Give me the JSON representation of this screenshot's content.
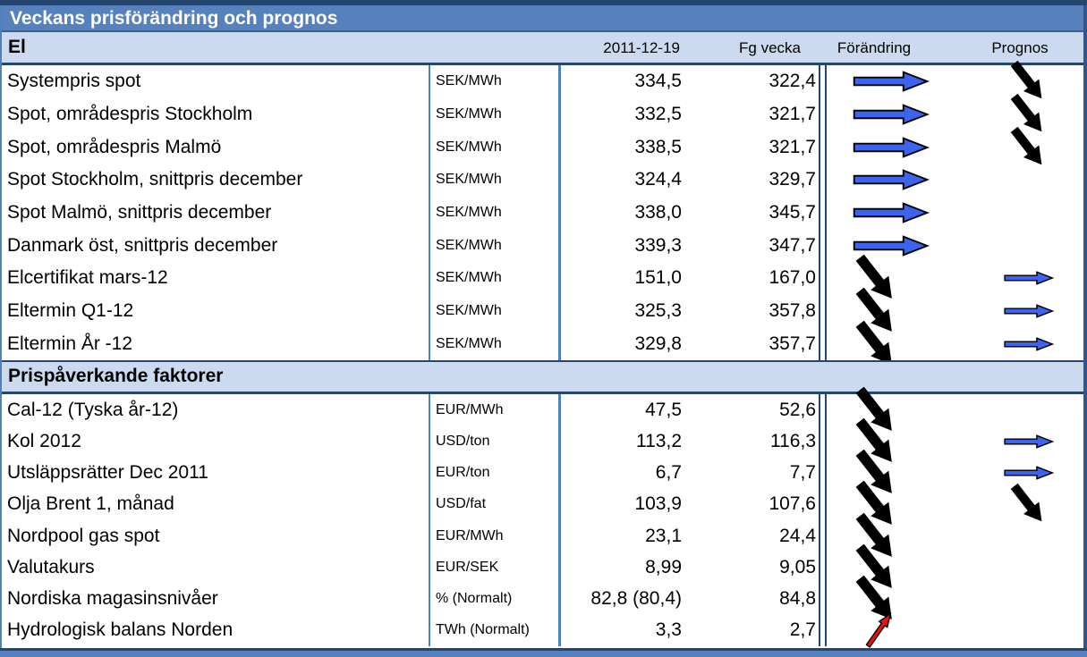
{
  "title": "Veckans prisförändring och prognos",
  "columns": {
    "date": "2011-12-19",
    "prev": "Fg vecka",
    "change": "Förändring",
    "forecast": "Prognos"
  },
  "colors": {
    "title_bar": "#5681BC",
    "section_band": "#CBDAEF",
    "border_dark": "#24466F",
    "border_blue": "#4F81BD",
    "arrow_blue": "#3D64EF",
    "arrow_black": "#000000",
    "arrow_red": "#E81212"
  },
  "legend": {
    "flat": "right-arrow",
    "down": "down-right-arrow",
    "up": "up-right-arrow"
  },
  "sections": [
    {
      "header": "El",
      "rows": [
        {
          "name": "Systempris spot",
          "unit": "SEK/MWh",
          "value": "334,5",
          "prev": "322,4",
          "change": "flat",
          "forecast": "down"
        },
        {
          "name": "Spot, områdespris Stockholm",
          "unit": "SEK/MWh",
          "value": "332,5",
          "prev": "321,7",
          "change": "flat",
          "forecast": "down"
        },
        {
          "name": "Spot, områdespris Malmö",
          "unit": "SEK/MWh",
          "value": "338,5",
          "prev": "321,7",
          "change": "flat",
          "forecast": "down"
        },
        {
          "name": "Spot Stockholm, snittpris december",
          "unit": "SEK/MWh",
          "value": "324,4",
          "prev": "329,7",
          "change": "flat",
          "forecast": "none"
        },
        {
          "name": "Spot Malmö, snittpris december",
          "unit": "SEK/MWh",
          "value": "338,0",
          "prev": "345,7",
          "change": "flat",
          "forecast": "none"
        },
        {
          "name": "Danmark öst, snittpris december",
          "unit": "SEK/MWh",
          "value": "339,3",
          "prev": "347,7",
          "change": "flat",
          "forecast": "none"
        },
        {
          "name": "Elcertifikat mars-12",
          "unit": "SEK/MWh",
          "value": "151,0",
          "prev": "167,0",
          "change": "down",
          "forecast": "flat"
        },
        {
          "name": "Eltermin Q1-12",
          "unit": "SEK/MWh",
          "value": "325,3",
          "prev": "357,8",
          "change": "down",
          "forecast": "flat"
        },
        {
          "name": "Eltermin År -12",
          "unit": "SEK/MWh",
          "value": "329,8",
          "prev": "357,7",
          "change": "down",
          "forecast": "flat"
        }
      ]
    },
    {
      "header": "Prispåverkande faktorer",
      "rows": [
        {
          "name": "Cal-12 (Tyska år-12)",
          "unit": "EUR/MWh",
          "value": "47,5",
          "prev": "52,6",
          "change": "down",
          "forecast": "none"
        },
        {
          "name": "Kol 2012",
          "unit": "USD/ton",
          "value": "113,2",
          "prev": "116,3",
          "change": "down",
          "forecast": "flat"
        },
        {
          "name": "Utsläppsrätter Dec 2011",
          "unit": "EUR/ton",
          "value": "6,7",
          "prev": "7,7",
          "change": "down",
          "forecast": "flat"
        },
        {
          "name": "Olja Brent 1, månad",
          "unit": "USD/fat",
          "value": "103,9",
          "prev": "107,6",
          "change": "down",
          "forecast": "down"
        },
        {
          "name": "Nordpool gas spot",
          "unit": "EUR/MWh",
          "value": "23,1",
          "prev": "24,4",
          "change": "down",
          "forecast": "none"
        },
        {
          "name": "Valutakurs",
          "unit": "EUR/SEK",
          "value": "8,99",
          "prev": "9,05",
          "change": "down",
          "forecast": "none"
        },
        {
          "name": "Nordiska magasinsnivåer",
          "unit": "% (Normalt)",
          "value": "82,8 (80,4)",
          "prev": "84,8",
          "change": "down",
          "forecast": "none"
        },
        {
          "name": "Hydrologisk balans Norden",
          "unit": "TWh (Normalt)",
          "value": "3,3",
          "prev": "2,7",
          "change": "up",
          "forecast": "none"
        }
      ]
    }
  ]
}
